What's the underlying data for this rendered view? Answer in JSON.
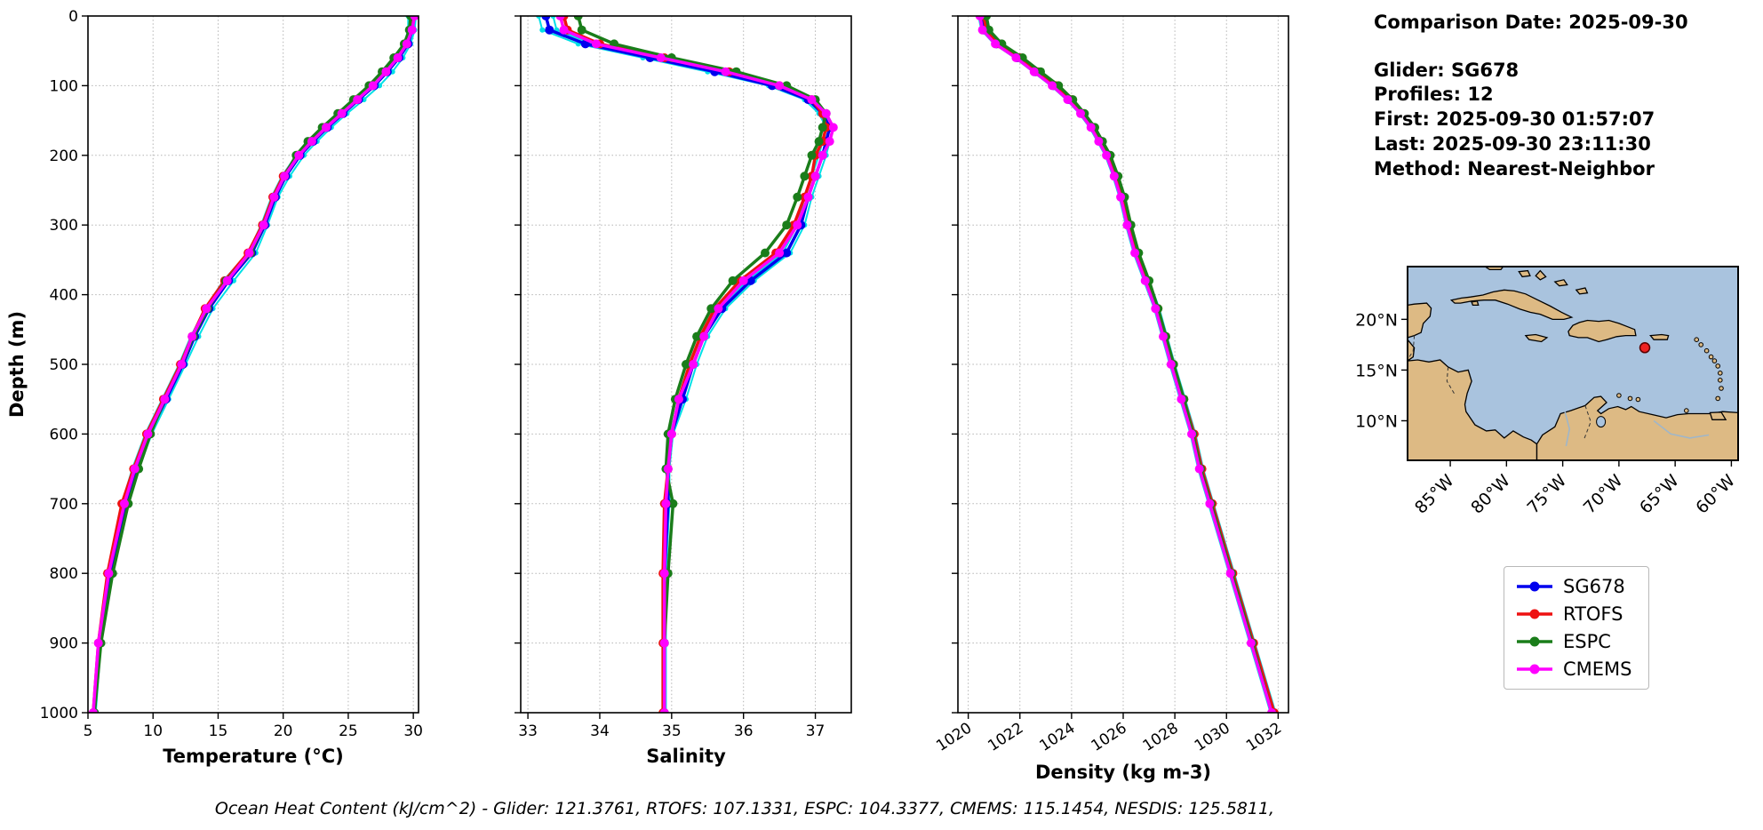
{
  "info_panel": {
    "comparison_date": "Comparison Date: 2025-09-30",
    "glider": "Glider: SG678",
    "profiles": "Profiles: 12",
    "first": "First: 2025-09-30 01:57:07",
    "last": "Last: 2025-09-30 23:11:30",
    "method": "Method: Nearest-Neighbor"
  },
  "legend": {
    "items": [
      {
        "label": "SG678",
        "color": "#0000ee"
      },
      {
        "label": "RTOFS",
        "color": "#ee1111"
      },
      {
        "label": "ESPC",
        "color": "#1a7d1a"
      },
      {
        "label": "CMEMS",
        "color": "#ff00ff"
      }
    ]
  },
  "footer": {
    "ocean_heat_content": "Ocean Heat Content (kJ/cm^2) - Glider: 121.3761,  RTOFS: 107.1331,  ESPC: 104.3377,  CMEMS: 115.1454,  NESDIS: 125.5811,"
  },
  "map": {
    "ocean_color": "#a9c3de",
    "land_color": "#ddba84",
    "extent": {
      "lon_min": -88.8,
      "lon_max": -59.4,
      "lat_min": 6.1,
      "lat_max": 25.2
    },
    "marker": {
      "lon": -67.7,
      "lat": 17.2,
      "color": "#ee2222"
    },
    "x_ticks": [
      {
        "lon": -85,
        "label": "85°W"
      },
      {
        "lon": -80,
        "label": "80°W"
      },
      {
        "lon": -75,
        "label": "75°W"
      },
      {
        "lon": -70,
        "label": "70°W"
      },
      {
        "lon": -65,
        "label": "65°W"
      },
      {
        "lon": -60,
        "label": "60°W"
      }
    ],
    "y_ticks": [
      {
        "lat": 20,
        "label": "20°N"
      },
      {
        "lat": 15,
        "label": "15°N"
      },
      {
        "lat": 10,
        "label": "10°N"
      }
    ]
  },
  "chart_data": [
    {
      "type": "line",
      "name": "temperature",
      "xlabel": "Temperature (°C)",
      "ylabel": "Depth (m)",
      "xlim": [
        5,
        30.4
      ],
      "ylim": [
        0,
        1000
      ],
      "x_ticks": [
        5,
        10,
        15,
        20,
        25,
        30
      ],
      "y_ticks": [
        0,
        100,
        200,
        300,
        400,
        500,
        600,
        700,
        800,
        900,
        1000
      ],
      "show_y_labels": true,
      "rotate_x_labels": false,
      "grid": true,
      "depths": [
        0,
        20,
        40,
        60,
        80,
        100,
        120,
        140,
        160,
        180,
        200,
        230,
        260,
        300,
        340,
        380,
        420,
        460,
        500,
        550,
        600,
        650,
        700,
        800,
        900,
        1000
      ],
      "series": [
        {
          "name": "glider-profile-a",
          "color": "#00e0e6",
          "line_width": 2,
          "marker_size": 3,
          "values": [
            30.2,
            30.1,
            29.8,
            29.2,
            28.4,
            27.4,
            26.2,
            24.9,
            23.7,
            22.6,
            21.6,
            20.5,
            19.6,
            18.8,
            17.9,
            16.2,
            14.6,
            13.5,
            12.5,
            11.2,
            9.9,
            8.9,
            8.0,
            6.8,
            6.0,
            5.6
          ]
        },
        {
          "name": "glider-profile-b",
          "color": "#00e0e6",
          "line_width": 2,
          "marker_size": 3,
          "values": [
            29.6,
            29.6,
            29.3,
            28.6,
            27.7,
            26.6,
            25.4,
            24.2,
            23.1,
            22.0,
            21.0,
            19.9,
            19.1,
            18.3,
            17.3,
            15.4,
            14.0,
            12.9,
            12.0,
            10.7,
            9.4,
            8.4,
            7.6,
            6.5,
            5.8,
            5.4
          ]
        },
        {
          "name": "SG678",
          "color": "#0000ee",
          "line_width": 3.5,
          "marker_size": 5,
          "values": [
            29.9,
            29.9,
            29.6,
            28.9,
            28.0,
            27.0,
            25.8,
            24.6,
            23.4,
            22.3,
            21.3,
            20.2,
            19.4,
            18.6,
            17.6,
            15.8,
            14.3,
            13.2,
            12.3,
            11.0,
            9.7,
            8.7,
            7.9,
            6.7,
            5.9,
            5.5
          ]
        },
        {
          "name": "RTOFS",
          "color": "#ee1111",
          "line_width": 3.5,
          "marker_size": 5,
          "values": [
            30.0,
            29.8,
            29.4,
            28.7,
            27.8,
            26.8,
            25.6,
            24.4,
            23.2,
            22.1,
            21.1,
            20.0,
            19.2,
            18.4,
            17.3,
            15.5,
            14.0,
            13.0,
            12.1,
            10.8,
            9.5,
            8.5,
            7.6,
            6.5,
            5.8,
            5.4
          ]
        },
        {
          "name": "ESPC",
          "color": "#1a7d1a",
          "line_width": 3.5,
          "marker_size": 5,
          "values": [
            29.8,
            29.7,
            29.3,
            28.5,
            27.6,
            26.6,
            25.4,
            24.2,
            23.0,
            21.9,
            21.0,
            20.1,
            19.3,
            18.5,
            17.5,
            15.6,
            14.2,
            13.1,
            12.2,
            10.9,
            9.8,
            8.9,
            8.1,
            6.9,
            6.0,
            5.5
          ]
        },
        {
          "name": "CMEMS",
          "color": "#ff00ff",
          "line_width": 3.5,
          "marker_size": 5,
          "values": [
            30.1,
            29.9,
            29.5,
            28.8,
            27.9,
            26.9,
            25.7,
            24.5,
            23.3,
            22.2,
            21.2,
            20.1,
            19.3,
            18.5,
            17.4,
            15.7,
            14.1,
            13.0,
            12.2,
            10.9,
            9.6,
            8.6,
            7.8,
            6.6,
            5.8,
            5.4
          ]
        }
      ]
    },
    {
      "type": "line",
      "name": "salinity",
      "xlabel": "Salinity",
      "ylabel": "",
      "xlim": [
        32.9,
        37.5
      ],
      "ylim": [
        0,
        1000
      ],
      "x_ticks": [
        33,
        34,
        35,
        36,
        37
      ],
      "y_ticks": [
        0,
        100,
        200,
        300,
        400,
        500,
        600,
        700,
        800,
        900,
        1000
      ],
      "show_y_labels": false,
      "rotate_x_labels": false,
      "grid": true,
      "depths": [
        0,
        20,
        40,
        60,
        80,
        100,
        120,
        140,
        160,
        180,
        200,
        230,
        260,
        300,
        340,
        380,
        420,
        460,
        500,
        550,
        600,
        650,
        700,
        800,
        900,
        1000
      ],
      "series": [
        {
          "name": "glider-profile-a",
          "color": "#00e0e6",
          "line_width": 2,
          "marker_size": 3,
          "values": [
            33.15,
            33.2,
            33.7,
            34.6,
            35.5,
            36.35,
            36.85,
            37.05,
            37.15,
            37.1,
            37.05,
            36.95,
            36.85,
            36.75,
            36.55,
            36.05,
            35.65,
            35.4,
            35.25,
            35.1,
            34.98,
            34.93,
            34.93,
            34.88,
            34.88,
            34.88
          ]
        },
        {
          "name": "glider-profile-b",
          "color": "#00e0e6",
          "line_width": 2,
          "marker_size": 3,
          "values": [
            33.35,
            33.4,
            33.9,
            34.8,
            35.7,
            36.45,
            36.95,
            37.15,
            37.25,
            37.2,
            37.15,
            37.05,
            36.95,
            36.85,
            36.65,
            36.15,
            35.75,
            35.5,
            35.35,
            35.2,
            35.02,
            34.97,
            34.97,
            34.92,
            34.92,
            34.92
          ]
        },
        {
          "name": "SG678",
          "color": "#0000ee",
          "line_width": 3.5,
          "marker_size": 5,
          "values": [
            33.25,
            33.3,
            33.8,
            34.7,
            35.6,
            36.4,
            36.9,
            37.1,
            37.2,
            37.15,
            37.1,
            37.0,
            36.9,
            36.8,
            36.6,
            36.1,
            35.7,
            35.45,
            35.3,
            35.15,
            35.0,
            34.95,
            34.95,
            34.9,
            34.9,
            34.9
          ]
        },
        {
          "name": "RTOFS",
          "color": "#ee1111",
          "line_width": 3.5,
          "marker_size": 5,
          "values": [
            33.5,
            33.55,
            34.0,
            34.9,
            35.8,
            36.5,
            36.95,
            37.1,
            37.15,
            37.1,
            37.0,
            36.95,
            36.85,
            36.7,
            36.45,
            35.95,
            35.6,
            35.4,
            35.25,
            35.1,
            35.0,
            34.95,
            34.9,
            34.88,
            34.88,
            34.88
          ]
        },
        {
          "name": "ESPC",
          "color": "#1a7d1a",
          "line_width": 3.5,
          "marker_size": 5,
          "values": [
            33.7,
            33.75,
            34.2,
            35.0,
            35.9,
            36.6,
            37.0,
            37.15,
            37.1,
            37.05,
            36.95,
            36.85,
            36.75,
            36.6,
            36.3,
            35.85,
            35.55,
            35.35,
            35.2,
            35.05,
            34.95,
            34.92,
            35.02,
            34.95,
            34.9,
            34.9
          ]
        },
        {
          "name": "CMEMS",
          "color": "#ff00ff",
          "line_width": 3.5,
          "marker_size": 5,
          "values": [
            33.45,
            33.5,
            33.95,
            34.85,
            35.75,
            36.5,
            36.95,
            37.15,
            37.25,
            37.2,
            37.1,
            37.0,
            36.9,
            36.75,
            36.5,
            36.0,
            35.65,
            35.45,
            35.3,
            35.1,
            35.0,
            34.95,
            34.92,
            34.9,
            34.9,
            34.9
          ]
        }
      ]
    },
    {
      "type": "line",
      "name": "density",
      "xlabel": "Density (kg m-3)",
      "ylabel": "",
      "xlim": [
        1019.6,
        1032.4
      ],
      "ylim": [
        0,
        1000
      ],
      "x_ticks": [
        1020,
        1022,
        1024,
        1026,
        1028,
        1030,
        1032
      ],
      "y_ticks": [
        0,
        100,
        200,
        300,
        400,
        500,
        600,
        700,
        800,
        900,
        1000
      ],
      "show_y_labels": false,
      "rotate_x_labels": true,
      "grid": true,
      "depths": [
        0,
        20,
        40,
        60,
        80,
        100,
        120,
        140,
        160,
        180,
        200,
        230,
        260,
        300,
        340,
        380,
        420,
        460,
        500,
        550,
        600,
        650,
        700,
        800,
        900,
        1000
      ],
      "series": [
        {
          "name": "glider-profile-a",
          "color": "#00e0e6",
          "line_width": 2,
          "marker_size": 3,
          "values": [
            1020.4,
            1020.5,
            1021.0,
            1021.8,
            1022.5,
            1023.2,
            1023.8,
            1024.3,
            1024.7,
            1025.0,
            1025.3,
            1025.6,
            1025.85,
            1026.1,
            1026.4,
            1026.8,
            1027.2,
            1027.5,
            1027.8,
            1028.2,
            1028.6,
            1028.9,
            1029.3,
            1030.1,
            1030.9,
            1031.7
          ]
        },
        {
          "name": "glider-profile-b",
          "color": "#00e0e6",
          "line_width": 2,
          "marker_size": 3,
          "values": [
            1020.6,
            1020.7,
            1021.2,
            1022.0,
            1022.7,
            1023.4,
            1024.0,
            1024.5,
            1024.9,
            1025.2,
            1025.5,
            1025.8,
            1026.05,
            1026.3,
            1026.6,
            1027.0,
            1027.4,
            1027.7,
            1028.0,
            1028.4,
            1028.8,
            1029.1,
            1029.5,
            1030.3,
            1031.1,
            1031.9
          ]
        },
        {
          "name": "SG678",
          "color": "#0000ee",
          "line_width": 3.5,
          "marker_size": 5,
          "values": [
            1020.5,
            1020.6,
            1021.1,
            1021.9,
            1022.6,
            1023.3,
            1023.9,
            1024.4,
            1024.8,
            1025.1,
            1025.4,
            1025.7,
            1025.95,
            1026.2,
            1026.5,
            1026.9,
            1027.3,
            1027.6,
            1027.9,
            1028.3,
            1028.7,
            1029.0,
            1029.4,
            1030.2,
            1031.0,
            1031.8
          ]
        },
        {
          "name": "RTOFS",
          "color": "#ee1111",
          "line_width": 3.5,
          "marker_size": 5,
          "values": [
            1020.6,
            1020.7,
            1021.2,
            1022.0,
            1022.7,
            1023.4,
            1024.0,
            1024.45,
            1024.85,
            1025.15,
            1025.45,
            1025.75,
            1026.0,
            1026.25,
            1026.55,
            1026.95,
            1027.35,
            1027.65,
            1027.95,
            1028.35,
            1028.75,
            1029.05,
            1029.45,
            1030.25,
            1031.05,
            1031.85
          ]
        },
        {
          "name": "ESPC",
          "color": "#1a7d1a",
          "line_width": 3.5,
          "marker_size": 5,
          "values": [
            1020.7,
            1020.8,
            1021.3,
            1022.1,
            1022.8,
            1023.5,
            1024.05,
            1024.5,
            1024.9,
            1025.2,
            1025.5,
            1025.8,
            1026.05,
            1026.3,
            1026.6,
            1027.0,
            1027.35,
            1027.65,
            1027.95,
            1028.35,
            1028.7,
            1029.0,
            1029.4,
            1030.2,
            1031.0,
            1031.75
          ]
        },
        {
          "name": "CMEMS",
          "color": "#ff00ff",
          "line_width": 3.5,
          "marker_size": 5,
          "values": [
            1020.45,
            1020.55,
            1021.05,
            1021.85,
            1022.55,
            1023.25,
            1023.85,
            1024.35,
            1024.75,
            1025.05,
            1025.35,
            1025.65,
            1025.9,
            1026.15,
            1026.45,
            1026.85,
            1027.25,
            1027.55,
            1027.85,
            1028.25,
            1028.65,
            1028.95,
            1029.35,
            1030.15,
            1030.95,
            1031.75
          ]
        }
      ]
    }
  ]
}
